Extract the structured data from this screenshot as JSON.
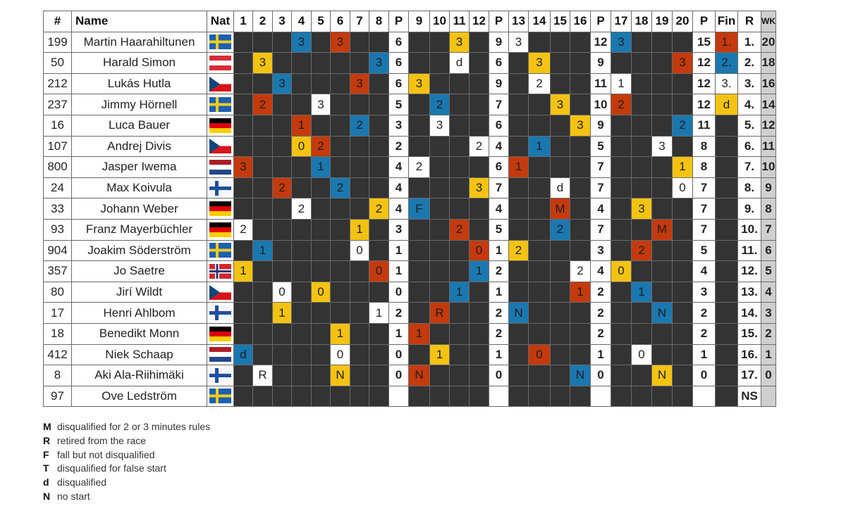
{
  "header": {
    "pos": "#",
    "name": "Name",
    "nat": "Nat",
    "cols": [
      "1",
      "2",
      "3",
      "4",
      "5",
      "6",
      "7",
      "8",
      "P",
      "9",
      "10",
      "11",
      "12",
      "P",
      "13",
      "14",
      "15",
      "16",
      "P",
      "17",
      "18",
      "19",
      "20",
      "P",
      "Fin",
      "R",
      "WK"
    ]
  },
  "colors": {
    "blue": "#1a78b0",
    "red": "#c43a0d",
    "yellow": "#f4c312",
    "white": "#ffffff",
    "dark": "#333333",
    "wk": "#cfcfcf"
  },
  "rows": [
    {
      "num": "199",
      "name": "Martin Haarahiltunen",
      "nat": "SWE",
      "cells": [
        "",
        "",
        "",
        "3",
        "",
        "3",
        "",
        "",
        "6",
        "",
        "",
        "3",
        "",
        "9",
        "3",
        "",
        "",
        "",
        "12",
        "3",
        "",
        "",
        "",
        "15",
        "1.",
        "1.",
        "20"
      ],
      "styles": [
        "h",
        "h",
        "h",
        "b",
        "h",
        "r",
        "h",
        "h",
        "p",
        "h",
        "h",
        "y",
        "h",
        "p",
        "w",
        "h",
        "h",
        "h",
        "p",
        "b",
        "h",
        "h",
        "h",
        "p",
        "r",
        "k",
        "x"
      ]
    },
    {
      "num": "50",
      "name": "Harald Simon",
      "nat": "AUT",
      "cells": [
        "",
        "3",
        "",
        "",
        "",
        "",
        "",
        "3",
        "6",
        "",
        "",
        "d",
        "",
        "6",
        "",
        "3",
        "",
        "",
        "9",
        "",
        "",
        "",
        "3",
        "12",
        "2.",
        "2.",
        "18"
      ],
      "styles": [
        "h",
        "y",
        "h",
        "h",
        "h",
        "h",
        "h",
        "b",
        "p",
        "h",
        "h",
        "w",
        "h",
        "p",
        "h",
        "y",
        "h",
        "h",
        "p",
        "h",
        "h",
        "h",
        "r",
        "p",
        "b",
        "k",
        "x"
      ]
    },
    {
      "num": "212",
      "name": "Lukás Hutla",
      "nat": "CZE",
      "cells": [
        "",
        "",
        "3",
        "",
        "",
        "",
        "3",
        "",
        "6",
        "3",
        "",
        "",
        "",
        "9",
        "",
        "2",
        "",
        "",
        "11",
        "1",
        "",
        "",
        "",
        "12",
        "3.",
        "3.",
        "16"
      ],
      "styles": [
        "h",
        "h",
        "b",
        "h",
        "h",
        "h",
        "r",
        "h",
        "p",
        "y",
        "h",
        "h",
        "h",
        "p",
        "h",
        "w",
        "h",
        "h",
        "p",
        "w",
        "h",
        "h",
        "h",
        "p",
        "w",
        "k",
        "x"
      ]
    },
    {
      "num": "237",
      "name": "Jimmy Hörnell",
      "nat": "SWE",
      "cells": [
        "",
        "2",
        "",
        "",
        "3",
        "",
        "",
        "",
        "5",
        "",
        "2",
        "",
        "",
        "7",
        "",
        "",
        "3",
        "",
        "10",
        "2",
        "",
        "",
        "",
        "12",
        "d",
        "4.",
        "14"
      ],
      "styles": [
        "h",
        "r",
        "h",
        "h",
        "w",
        "h",
        "h",
        "h",
        "p",
        "h",
        "b",
        "h",
        "h",
        "p",
        "h",
        "h",
        "y",
        "h",
        "p",
        "r",
        "h",
        "h",
        "h",
        "p",
        "y",
        "k",
        "x"
      ]
    },
    {
      "num": "16",
      "name": "Luca Bauer",
      "nat": "GER",
      "cells": [
        "",
        "",
        "",
        "1",
        "",
        "",
        "2",
        "",
        "3",
        "",
        "3",
        "",
        "",
        "6",
        "",
        "",
        "",
        "3",
        "9",
        "",
        "",
        "",
        "2",
        "11",
        "",
        "5.",
        "12"
      ],
      "styles": [
        "h",
        "h",
        "h",
        "r",
        "h",
        "h",
        "b",
        "h",
        "p",
        "h",
        "w",
        "h",
        "h",
        "p",
        "h",
        "h",
        "h",
        "y",
        "p",
        "h",
        "h",
        "h",
        "b",
        "p",
        "h",
        "k",
        "x"
      ]
    },
    {
      "num": "107",
      "name": "Andrej Divis",
      "nat": "CZE",
      "cells": [
        "",
        "",
        "",
        "0",
        "2",
        "",
        "",
        "",
        "2",
        "",
        "",
        "",
        "2",
        "4",
        "",
        "1",
        "",
        "",
        "5",
        "",
        "",
        "3",
        "",
        "8",
        "",
        "6.",
        "11"
      ],
      "styles": [
        "h",
        "h",
        "h",
        "y",
        "r",
        "h",
        "h",
        "h",
        "p",
        "h",
        "h",
        "h",
        "w",
        "p",
        "h",
        "b",
        "h",
        "h",
        "p",
        "h",
        "h",
        "w",
        "h",
        "p",
        "h",
        "k",
        "x"
      ]
    },
    {
      "num": "800",
      "name": "Jasper Iwema",
      "nat": "NED",
      "cells": [
        "3",
        "",
        "",
        "",
        "1",
        "",
        "",
        "",
        "4",
        "2",
        "",
        "",
        "",
        "6",
        "1",
        "",
        "",
        "",
        "7",
        "",
        "",
        "",
        "1",
        "8",
        "",
        "7.",
        "10"
      ],
      "styles": [
        "r",
        "h",
        "h",
        "h",
        "b",
        "h",
        "h",
        "h",
        "p",
        "w",
        "h",
        "h",
        "h",
        "p",
        "r",
        "h",
        "h",
        "h",
        "p",
        "h",
        "h",
        "h",
        "y",
        "p",
        "h",
        "k",
        "x"
      ]
    },
    {
      "num": "24",
      "name": "Max Koivula",
      "nat": "FIN",
      "cells": [
        "",
        "",
        "2",
        "",
        "",
        "2",
        "",
        "",
        "4",
        "",
        "",
        "",
        "3",
        "7",
        "",
        "",
        "d",
        "",
        "7",
        "",
        "",
        "",
        "0",
        "7",
        "",
        "8.",
        "9"
      ],
      "styles": [
        "h",
        "h",
        "r",
        "h",
        "h",
        "b",
        "h",
        "h",
        "p",
        "h",
        "h",
        "h",
        "y",
        "p",
        "h",
        "h",
        "w",
        "h",
        "p",
        "h",
        "h",
        "h",
        "w",
        "p",
        "h",
        "k",
        "x"
      ]
    },
    {
      "num": "33",
      "name": "Johann Weber",
      "nat": "GER",
      "cells": [
        "",
        "",
        "",
        "2",
        "",
        "",
        "",
        "2",
        "4",
        "F",
        "",
        "",
        "",
        "4",
        "",
        "",
        "M",
        "",
        "4",
        "",
        "3",
        "",
        "",
        "7",
        "",
        "9.",
        "8"
      ],
      "styles": [
        "h",
        "h",
        "h",
        "w",
        "h",
        "h",
        "h",
        "y",
        "p",
        "b",
        "h",
        "h",
        "h",
        "p",
        "h",
        "h",
        "r",
        "h",
        "p",
        "h",
        "y",
        "h",
        "h",
        "p",
        "h",
        "k",
        "x"
      ]
    },
    {
      "num": "93",
      "name": "Franz Mayerbüchler",
      "nat": "GER",
      "cells": [
        "2",
        "",
        "",
        "",
        "",
        "",
        "1",
        "",
        "3",
        "",
        "",
        "2",
        "",
        "5",
        "",
        "",
        "2",
        "",
        "7",
        "",
        "",
        "M",
        "",
        "7",
        "",
        "10.",
        "7"
      ],
      "styles": [
        "w",
        "h",
        "h",
        "h",
        "h",
        "h",
        "y",
        "h",
        "p",
        "h",
        "h",
        "r",
        "h",
        "p",
        "h",
        "h",
        "b",
        "h",
        "p",
        "h",
        "h",
        "r",
        "h",
        "p",
        "h",
        "k",
        "x"
      ]
    },
    {
      "num": "904",
      "name": "Joakim Söderström",
      "nat": "SWE",
      "cells": [
        "",
        "1",
        "",
        "",
        "",
        "",
        "0",
        "",
        "1",
        "",
        "",
        "",
        "0",
        "1",
        "2",
        "",
        "",
        "",
        "3",
        "",
        "2",
        "",
        "",
        "5",
        "",
        "11.",
        "6"
      ],
      "styles": [
        "h",
        "b",
        "h",
        "h",
        "h",
        "h",
        "w",
        "h",
        "p",
        "h",
        "h",
        "h",
        "r",
        "p",
        "y",
        "h",
        "h",
        "h",
        "p",
        "h",
        "r",
        "h",
        "h",
        "p",
        "h",
        "k",
        "x"
      ]
    },
    {
      "num": "357",
      "name": "Jo Saetre",
      "nat": "NOR",
      "cells": [
        "1",
        "",
        "",
        "",
        "",
        "",
        "",
        "0",
        "1",
        "",
        "",
        "",
        "1",
        "2",
        "",
        "",
        "",
        "2",
        "4",
        "0",
        "",
        "",
        "",
        "4",
        "",
        "12.",
        "5"
      ],
      "styles": [
        "y",
        "h",
        "h",
        "h",
        "h",
        "h",
        "h",
        "r",
        "p",
        "h",
        "h",
        "h",
        "b",
        "p",
        "h",
        "h",
        "h",
        "w",
        "p",
        "y",
        "h",
        "h",
        "h",
        "p",
        "h",
        "k",
        "x"
      ]
    },
    {
      "num": "80",
      "name": "Jirí Wildt",
      "nat": "CZE",
      "cells": [
        "",
        "",
        "0",
        "",
        "0",
        "",
        "",
        "",
        "0",
        "",
        "",
        "1",
        "",
        "1",
        "",
        "",
        "",
        "1",
        "2",
        "",
        "1",
        "",
        "",
        "3",
        "",
        "13.",
        "4"
      ],
      "styles": [
        "h",
        "h",
        "w",
        "h",
        "y",
        "h",
        "h",
        "h",
        "p",
        "h",
        "h",
        "b",
        "h",
        "p",
        "h",
        "h",
        "h",
        "r",
        "p",
        "h",
        "b",
        "h",
        "h",
        "p",
        "h",
        "k",
        "x"
      ]
    },
    {
      "num": "17",
      "name": "Henri Ahlbom",
      "nat": "FIN",
      "cells": [
        "",
        "",
        "1",
        "",
        "",
        "",
        "",
        "1",
        "2",
        "",
        "R",
        "",
        "",
        "2",
        "N",
        "",
        "",
        "",
        "2",
        "",
        "",
        "N",
        "",
        "2",
        "",
        "14.",
        "3"
      ],
      "styles": [
        "h",
        "h",
        "y",
        "h",
        "h",
        "h",
        "h",
        "w",
        "p",
        "h",
        "r",
        "h",
        "h",
        "p",
        "b",
        "h",
        "h",
        "h",
        "p",
        "h",
        "h",
        "b",
        "h",
        "p",
        "h",
        "k",
        "x"
      ]
    },
    {
      "num": "18",
      "name": "Benedikt Monn",
      "nat": "GER",
      "cells": [
        "",
        "",
        "",
        "",
        "",
        "1",
        "",
        "",
        "1",
        "1",
        "",
        "",
        "",
        "2",
        "",
        "",
        "",
        "",
        "2",
        "",
        "",
        "",
        "",
        "2",
        "",
        "15.",
        "2"
      ],
      "styles": [
        "h",
        "h",
        "h",
        "h",
        "h",
        "y",
        "h",
        "h",
        "p",
        "r",
        "h",
        "h",
        "h",
        "p",
        "h",
        "h",
        "h",
        "h",
        "p",
        "h",
        "h",
        "h",
        "h",
        "p",
        "h",
        "k",
        "x"
      ]
    },
    {
      "num": "412",
      "name": "Niek Schaap",
      "nat": "NED",
      "cells": [
        "d",
        "",
        "",
        "",
        "",
        "0",
        "",
        "",
        "0",
        "",
        "1",
        "",
        "",
        "1",
        "",
        "0",
        "",
        "",
        "1",
        "",
        "0",
        "",
        "",
        "1",
        "",
        "16.",
        "1"
      ],
      "styles": [
        "b",
        "h",
        "h",
        "h",
        "h",
        "w",
        "h",
        "h",
        "p",
        "h",
        "y",
        "h",
        "h",
        "p",
        "h",
        "r",
        "h",
        "h",
        "p",
        "h",
        "w",
        "h",
        "h",
        "p",
        "h",
        "k",
        "x"
      ]
    },
    {
      "num": "8",
      "name": "Aki Ala-Riihimäki",
      "nat": "FIN",
      "cells": [
        "",
        "R",
        "",
        "",
        "",
        "N",
        "",
        "",
        "0",
        "N",
        "",
        "",
        "",
        "0",
        "",
        "",
        "",
        "N",
        "0",
        "",
        "",
        "N",
        "",
        "0",
        "",
        "17.",
        "0"
      ],
      "styles": [
        "h",
        "w",
        "h",
        "h",
        "h",
        "y",
        "h",
        "h",
        "p",
        "r",
        "h",
        "h",
        "h",
        "p",
        "h",
        "h",
        "h",
        "b",
        "p",
        "h",
        "h",
        "y",
        "h",
        "p",
        "h",
        "k",
        "x"
      ]
    },
    {
      "num": "97",
      "name": "Ove Ledström",
      "nat": "SWE",
      "cells": [
        "",
        "",
        "",
        "",
        "",
        "",
        "",
        "",
        "",
        "",
        "",
        "",
        "",
        "",
        "",
        "",
        "",
        "",
        "",
        "",
        "",
        "",
        "",
        "",
        "",
        "NS",
        ""
      ],
      "styles": [
        "h",
        "h",
        "h",
        "h",
        "h",
        "h",
        "h",
        "h",
        "p",
        "h",
        "h",
        "h",
        "h",
        "p",
        "h",
        "h",
        "h",
        "h",
        "p",
        "h",
        "h",
        "h",
        "h",
        "p",
        "h",
        "k",
        "x"
      ]
    }
  ],
  "legend": [
    {
      "code": "M",
      "text": "disqualified for 2 or 3 minutes rules"
    },
    {
      "code": "R",
      "text": "retired from the race"
    },
    {
      "code": "F",
      "text": "fall but not disqualified"
    },
    {
      "code": "T",
      "text": "disqualified for false start"
    },
    {
      "code": "d",
      "text": "disqualified"
    },
    {
      "code": "N",
      "text": "no start"
    }
  ]
}
